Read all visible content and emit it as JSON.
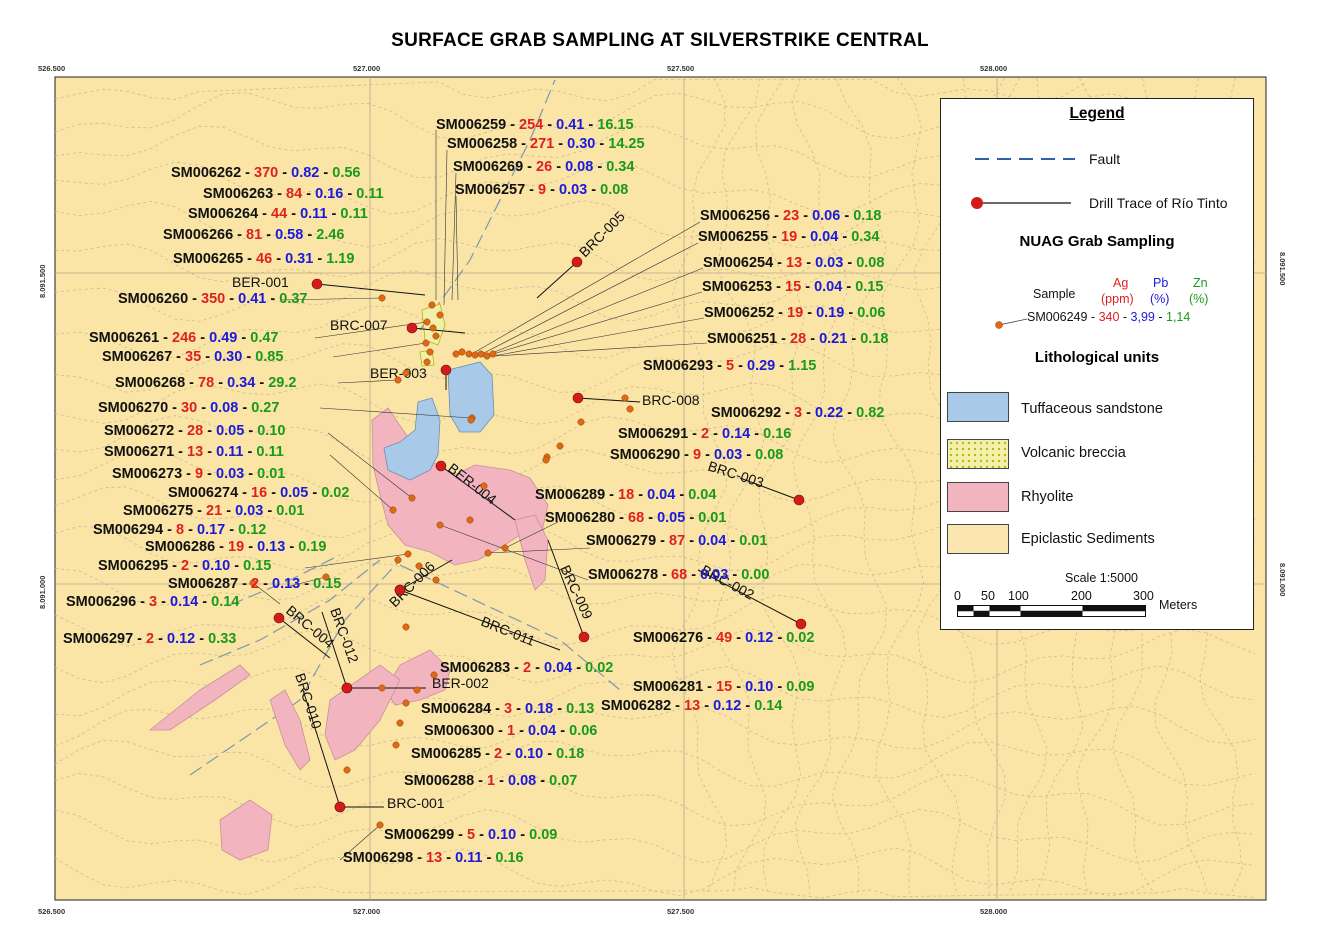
{
  "title": "SURFACE GRAB SAMPLING AT SILVERSTRIKE CENTRAL",
  "axes": {
    "x_ticks": [
      "526.500",
      "527.000",
      "527.500",
      "528.000"
    ],
    "y_ticks": [
      "8.091.500",
      "8.091.000"
    ]
  },
  "legend": {
    "title": "Legend",
    "fault_label": "Fault",
    "drill_label": "Drill Trace of Río Tinto",
    "sampling_header": "NUAG Grab Sampling",
    "sample_word": "Sample",
    "ag_head": "Ag",
    "ag_unit": "(ppm)",
    "pb_head": "Pb",
    "pb_unit": "(%)",
    "zn_head": "Zn",
    "zn_unit": "(%)",
    "example_id": "SM006249 - ",
    "example_ag": "340",
    "example_sep1": " - ",
    "example_pb": "3,99",
    "example_sep2": " - ",
    "example_zn": "1,14",
    "lith_header": "Lithological units",
    "units": [
      "Tuffaceous sandstone",
      "Volcanic  breccia",
      "Rhyolite",
      "Epiclastic Sediments"
    ],
    "scale_title": "Scale 1:5000",
    "scale_ticks": [
      "0",
      "50",
      "100",
      "200",
      "300"
    ],
    "scale_unit": "Meters"
  },
  "colors": {
    "background": "#fae4a6",
    "ag": "#e02020",
    "pb": "#1a1adc",
    "zn": "#1a9a1a",
    "sample_marker": "#e06a14",
    "drill_marker": "#d21c1c",
    "tuffaceous": "#a9c9e8",
    "breccia": "#f2f0a8",
    "rhyolite": "#f2b5c0",
    "epiclastic": "#fbe6b0"
  },
  "drill_holes": [
    "BER-001",
    "BRC-007",
    "BER-003",
    "BRC-005",
    "BRC-008",
    "BER-004",
    "BRC-003",
    "BRC-006",
    "BRC-009",
    "BRC-002",
    "BRC-011",
    "BRC-004",
    "BRC-012",
    "BER-002",
    "BRC-010",
    "BRC-001"
  ],
  "samples": [
    {
      "id": "SM006259",
      "ag": "254",
      "pb": "0.41",
      "zn": "16.15"
    },
    {
      "id": "SM006258",
      "ag": "271",
      "pb": "0.30",
      "zn": "14.25"
    },
    {
      "id": "SM006262",
      "ag": "370",
      "pb": "0.82",
      "zn": "0.56"
    },
    {
      "id": "SM006269",
      "ag": "26",
      "pb": "0.08",
      "zn": "0.34"
    },
    {
      "id": "SM006263",
      "ag": "84",
      "pb": "0.16",
      "zn": "0.11"
    },
    {
      "id": "SM006257",
      "ag": "9",
      "pb": "0.03",
      "zn": "0.08"
    },
    {
      "id": "SM006264",
      "ag": "44",
      "pb": "0.11",
      "zn": "0.11"
    },
    {
      "id": "SM006256",
      "ag": "23",
      "pb": "0.06",
      "zn": "0.18"
    },
    {
      "id": "SM006266",
      "ag": "81",
      "pb": "0.58",
      "zn": "2.46"
    },
    {
      "id": "SM006255",
      "ag": "19",
      "pb": "0.04",
      "zn": "0.34"
    },
    {
      "id": "SM006265",
      "ag": "46",
      "pb": "0.31",
      "zn": "1.19"
    },
    {
      "id": "SM006254",
      "ag": "13",
      "pb": "0.03",
      "zn": "0.08"
    },
    {
      "id": "SM006253",
      "ag": "15",
      "pb": "0.04",
      "zn": "0.15"
    },
    {
      "id": "SM006260",
      "ag": "350",
      "pb": "0.41",
      "zn": "0.37"
    },
    {
      "id": "SM006252",
      "ag": "19",
      "pb": "0.19",
      "zn": "0.06"
    },
    {
      "id": "SM006261",
      "ag": "246",
      "pb": "0.49",
      "zn": "0.47"
    },
    {
      "id": "SM006251",
      "ag": "28",
      "pb": "0.21",
      "zn": "0.18"
    },
    {
      "id": "SM006267",
      "ag": "35",
      "pb": "0.30",
      "zn": "0.85"
    },
    {
      "id": "SM006293",
      "ag": "5",
      "pb": "0.29",
      "zn": "1.15"
    },
    {
      "id": "SM006268",
      "ag": "78",
      "pb": "0.34",
      "zn": "29.2"
    },
    {
      "id": "SM006270",
      "ag": "30",
      "pb": "0.08",
      "zn": "0.27"
    },
    {
      "id": "SM006292",
      "ag": "3",
      "pb": "0.22",
      "zn": "0.82"
    },
    {
      "id": "SM006272",
      "ag": "28",
      "pb": "0.05",
      "zn": "0.10"
    },
    {
      "id": "SM006291",
      "ag": "2",
      "pb": "0.14",
      "zn": "0.16"
    },
    {
      "id": "SM006271",
      "ag": "13",
      "pb": "0.11",
      "zn": "0.11"
    },
    {
      "id": "SM006290",
      "ag": "9",
      "pb": "0.03",
      "zn": "0.08"
    },
    {
      "id": "SM006273",
      "ag": "9",
      "pb": "0.03",
      "zn": "0.01"
    },
    {
      "id": "SM006274",
      "ag": "16",
      "pb": "0.05",
      "zn": "0.02"
    },
    {
      "id": "SM006289",
      "ag": "18",
      "pb": "0.04",
      "zn": "0.04"
    },
    {
      "id": "SM006275",
      "ag": "21",
      "pb": "0.03",
      "zn": "0.01"
    },
    {
      "id": "SM006280",
      "ag": "68",
      "pb": "0.05",
      "zn": "0.01"
    },
    {
      "id": "SM006294",
      "ag": "8",
      "pb": "0.17",
      "zn": "0.12"
    },
    {
      "id": "SM006279",
      "ag": "87",
      "pb": "0.04",
      "zn": "0.01"
    },
    {
      "id": "SM006286",
      "ag": "19",
      "pb": "0.13",
      "zn": "0.19"
    },
    {
      "id": "SM006295",
      "ag": "2",
      "pb": "0.10",
      "zn": "0.15"
    },
    {
      "id": "SM006278",
      "ag": "68",
      "pb": "0.03",
      "zn": "0.00"
    },
    {
      "id": "SM006287",
      "ag": "2",
      "pb": "0.13",
      "zn": "0.15"
    },
    {
      "id": "SM006296",
      "ag": "3",
      "pb": "0.14",
      "zn": "0.14"
    },
    {
      "id": "SM006297",
      "ag": "2",
      "pb": "0.12",
      "zn": "0.33"
    },
    {
      "id": "SM006276",
      "ag": "49",
      "pb": "0.12",
      "zn": "0.02"
    },
    {
      "id": "SM006283",
      "ag": "2",
      "pb": "0.04",
      "zn": "0.02"
    },
    {
      "id": "SM006281",
      "ag": "15",
      "pb": "0.10",
      "zn": "0.09"
    },
    {
      "id": "SM006284",
      "ag": "3",
      "pb": "0.18",
      "zn": "0.13"
    },
    {
      "id": "SM006282",
      "ag": "13",
      "pb": "0.12",
      "zn": "0.14"
    },
    {
      "id": "SM006300",
      "ag": "1",
      "pb": "0.04",
      "zn": "0.06"
    },
    {
      "id": "SM006285",
      "ag": "2",
      "pb": "0.10",
      "zn": "0.18"
    },
    {
      "id": "SM006288",
      "ag": "1",
      "pb": "0.08",
      "zn": "0.07"
    },
    {
      "id": "SM006299",
      "ag": "5",
      "pb": "0.10",
      "zn": "0.09"
    },
    {
      "id": "SM006298",
      "ag": "13",
      "pb": "0.11",
      "zn": "0.16"
    }
  ]
}
